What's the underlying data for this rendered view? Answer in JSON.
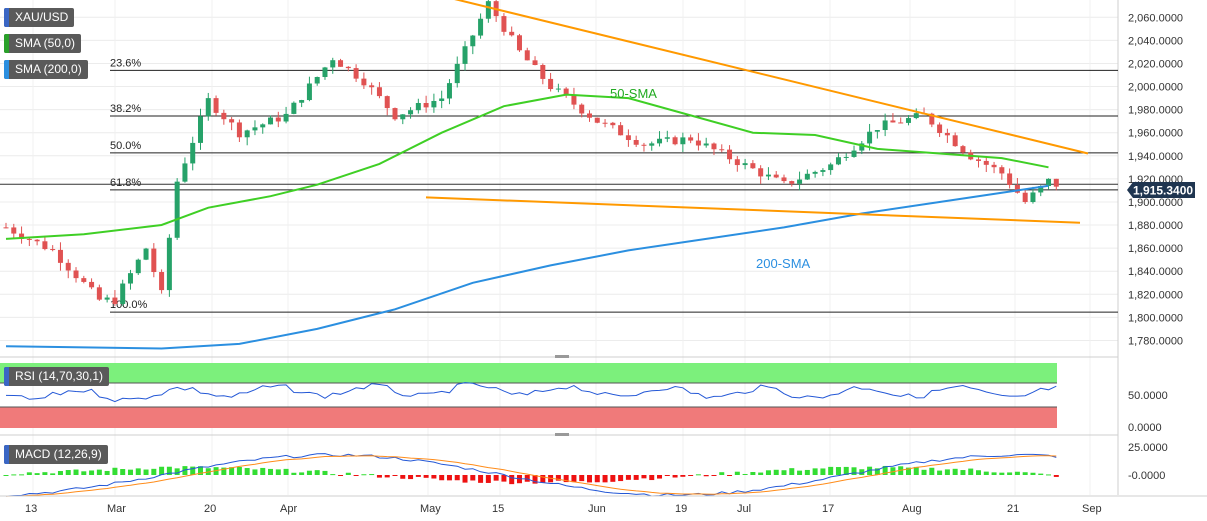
{
  "header": {
    "symbol": "XAU/USD",
    "sma50_tag": "SMA (50,0)",
    "sma200_tag": "SMA (200,0)"
  },
  "colors": {
    "candle_up": "#26a269",
    "candle_down": "#e05252",
    "sma50": "#3fcf25",
    "sma200": "#2b8fe0",
    "trendline": "#ff9900",
    "price_badge": "#1f3550",
    "rsi_band_upper": "#7cf07c",
    "rsi_band_lower": "#f07a7a",
    "macd_line": "#2458d6",
    "signal_line": "#ff8c1a",
    "hist_up": "#33dd33",
    "hist_down": "#ee1111"
  },
  "chart_data": {
    "type": "candlestick",
    "symbol": "XAU/USD",
    "price_axis": {
      "min": 1770,
      "max": 2075,
      "ticks": [
        "2,060.0000",
        "2,040.0000",
        "2,020.0000",
        "2,000.0000",
        "1,980.0000",
        "1,960.0000",
        "1,940.0000",
        "1,920.0000",
        "1,900.0000",
        "1,880.0000",
        "1,860.0000",
        "1,840.0000",
        "1,820.0000",
        "1,800.0000",
        "1,780.0000"
      ]
    },
    "x_axis_labels": [
      "13",
      "Mar",
      "20",
      "Apr",
      "May",
      "15",
      "Jun",
      "19",
      "Jul",
      "17",
      "Aug",
      "21",
      "Sep"
    ],
    "last_price": "1,915.3400",
    "last_price_value": 1915.34,
    "fibonacci": [
      {
        "label": "23.6%",
        "value": 2014
      },
      {
        "label": "38.2%",
        "value": 1974.5
      },
      {
        "label": "50.0%",
        "value": 1942.5
      },
      {
        "label": "61.8%",
        "value": 1910.5
      },
      {
        "label": "100.0%",
        "value": 1804.5
      }
    ],
    "top_line": 2077.5,
    "annotations": {
      "sma50": "50-SMA",
      "sma200": "200-SMA"
    },
    "trendlines": [
      {
        "from": {
          "date": "May 4",
          "price": 2077
        },
        "to": {
          "date": "Aug 30",
          "price": 1942
        }
      },
      {
        "from": {
          "date": "Apr 28",
          "price": 1904
        },
        "to": {
          "date": "Aug 30",
          "price": 1882
        }
      }
    ],
    "candle_count": 136,
    "rsi": {
      "label": "RSI (14,70,30,1)",
      "ticks": [
        "50.0000",
        "0.0000"
      ],
      "upper_band": 70,
      "lower_band": 30
    },
    "macd": {
      "label": "MACD (12,26,9)",
      "ticks": [
        "25.0000",
        "-0.0000"
      ]
    }
  }
}
